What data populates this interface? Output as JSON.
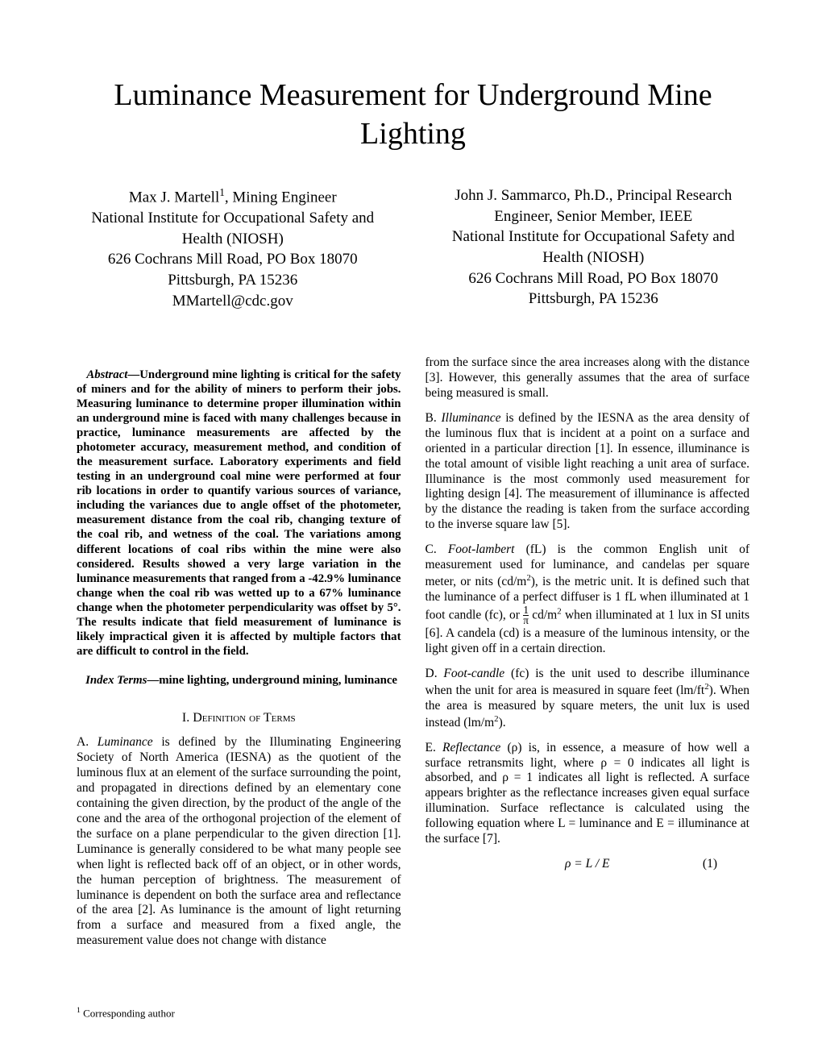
{
  "title": "Luminance Measurement for Underground Mine Lighting",
  "authors": {
    "left": {
      "name": "Max J. Martell",
      "sup": "1",
      "role": ", Mining Engineer",
      "org1": "National Institute for Occupational Safety and",
      "org2": "Health (NIOSH)",
      "addr1": "626 Cochrans Mill Road, PO Box 18070",
      "addr2": "Pittsburgh, PA 15236",
      "email": "MMartell@cdc.gov"
    },
    "right": {
      "name": "John J. Sammarco, Ph.D., Principal Research",
      "role": "Engineer, Senior Member, IEEE",
      "org1": "National Institute for Occupational Safety and",
      "org2": "Health (NIOSH)",
      "addr1": "626 Cochrans Mill Road, PO Box 18070",
      "addr2": "Pittsburgh, PA 15236"
    }
  },
  "abstract": {
    "lead": "Abstract",
    "body": "—Underground mine lighting is critical for the safety of miners and for the ability of miners to perform their jobs. Measuring luminance to determine proper illumination within an underground mine is faced with many challenges because in practice, luminance measurements are affected by the photometer accuracy, measurement method, and condition of the measurement surface. Laboratory experiments and field testing in an underground coal mine were performed at four rib locations in order to quantify various sources of variance, including the variances due to angle offset of the photometer, measurement distance from the coal rib, changing texture of the coal rib, and wetness of the coal. The variations among different locations of coal ribs within the mine were also considered. Results showed a very large variation in the luminance measurements that ranged from a -42.9% luminance change when the coal rib was wetted up to a 67% luminance change when the photometer perpendicularity was offset by 5°. The results indicate that field measurement of luminance is likely impractical given it is affected by multiple factors that are difficult to control in the field."
  },
  "indexTerms": {
    "lead": "Index Terms",
    "body": "—mine lighting, underground mining, luminance"
  },
  "section1": {
    "num": "I.  ",
    "heading": "Definition of Terms"
  },
  "defA": {
    "label": "A. ",
    "term": "Luminance",
    "text": " is defined by the Illuminating Engineering Society of North America (IESNA) as the quotient of the luminous flux at an element of the surface surrounding the point, and propagated in directions defined by an elementary cone containing the given direction, by the product of the angle of the cone and the area of the orthogonal projection of the element of the surface on a plane perpendicular to the given direction [1]. Luminance is generally considered to be what many people see when light is reflected back off of an object, or in other words, the human perception of brightness. The measurement of luminance is dependent on both the surface area and reflectance of the area [2]. As luminance is the amount of light returning from a surface and measured from a fixed angle, the measurement value does not change with distance"
  },
  "rcol": {
    "topCont": "from the surface since the area increases along with the distance [3]. However, this generally assumes that the area of surface being measured is small.",
    "defB_label": "B. ",
    "defB_term": "Illuminance",
    "defB_text": " is defined by the IESNA as the area density of the luminous flux that is incident at a point on a surface and oriented in a particular direction [1]. In essence, illuminance is the total amount of visible light reaching a unit area of surface. Illuminance is the most commonly used measurement for lighting design [4]. The measurement of illuminance is affected by the distance the reading is taken from the surface according to the inverse square law [5].",
    "defC_label": "C. ",
    "defC_term": "Foot-lambert",
    "defC_text_a": " (fL) is the common English unit of measurement used for luminance, and candelas per square meter, or nits (cd/m",
    "defC_sup1": "2",
    "defC_text_b": "), is the metric unit. It is defined such that the luminance of a perfect diffuser is 1 fL when illuminated at 1 foot candle (fc), or ",
    "defC_frac_num": "1",
    "defC_frac_den": "π",
    "defC_text_c": " cd/m",
    "defC_sup2": "2",
    "defC_text_d": " when illuminated at 1 lux in SI units [6]. A candela (cd) is a measure of the luminous intensity, or the light given off in a certain direction.",
    "defD_label": "D. ",
    "defD_term": "Foot-candle",
    "defD_text_a": " (fc) is the unit used to describe illuminance when the unit for area is measured in square feet (lm/ft",
    "defD_sup1": "2",
    "defD_text_b": "). When the area is measured by square meters, the unit lux is used instead (lm/m",
    "defD_sup2": "2",
    "defD_text_c": ").",
    "defE_label": "E. ",
    "defE_term": "Reflectance",
    "defE_text": " (ρ) is, in essence, a measure of how well a surface retransmits light, where ρ = 0 indicates all light is absorbed, and ρ = 1 indicates all light is reflected. A surface appears brighter as the reflectance increases given equal surface illumination. Surface reflectance is calculated using the following equation where L = luminance and E = illuminance at the surface [7].",
    "eq1": "ρ  =  L / E",
    "eq1num": "(1)"
  },
  "footnote": {
    "num": "1",
    "text": " Corresponding author"
  }
}
